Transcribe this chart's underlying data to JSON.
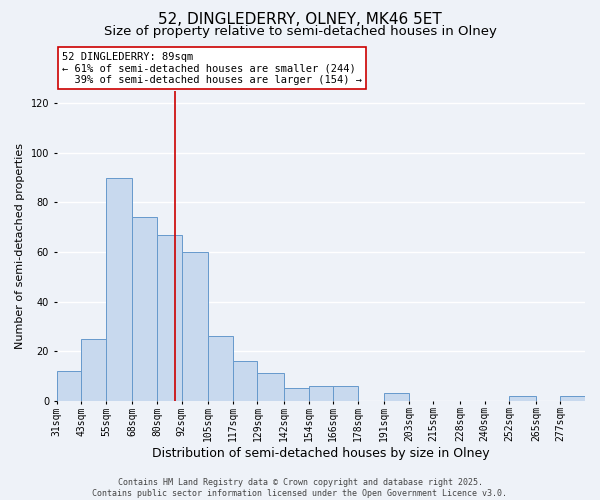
{
  "title": "52, DINGLEDERRY, OLNEY, MK46 5ET",
  "subtitle": "Size of property relative to semi-detached houses in Olney",
  "xlabel": "Distribution of semi-detached houses by size in Olney",
  "ylabel": "Number of semi-detached properties",
  "bin_labels": [
    "31sqm",
    "43sqm",
    "55sqm",
    "68sqm",
    "80sqm",
    "92sqm",
    "105sqm",
    "117sqm",
    "129sqm",
    "142sqm",
    "154sqm",
    "166sqm",
    "178sqm",
    "191sqm",
    "203sqm",
    "215sqm",
    "228sqm",
    "240sqm",
    "252sqm",
    "265sqm",
    "277sqm"
  ],
  "bin_edges": [
    31,
    43,
    55,
    68,
    80,
    92,
    105,
    117,
    129,
    142,
    154,
    166,
    178,
    191,
    203,
    215,
    228,
    240,
    252,
    265,
    277
  ],
  "bar_heights": [
    12,
    25,
    90,
    74,
    67,
    60,
    26,
    16,
    11,
    5,
    6,
    6,
    0,
    3,
    0,
    0,
    0,
    0,
    2,
    0,
    2
  ],
  "bar_color": "#c8d9ee",
  "bar_edge_color": "#6699cc",
  "ylim": [
    0,
    125
  ],
  "yticks": [
    0,
    20,
    40,
    60,
    80,
    100,
    120
  ],
  "property_value": 89,
  "vline_color": "#cc0000",
  "annotation_title": "52 DINGLEDERRY: 89sqm",
  "annotation_line1": "← 61% of semi-detached houses are smaller (244)",
  "annotation_line2": "  39% of semi-detached houses are larger (154) →",
  "annotation_box_color": "#ffffff",
  "annotation_box_edge_color": "#cc0000",
  "footer1": "Contains HM Land Registry data © Crown copyright and database right 2025.",
  "footer2": "Contains public sector information licensed under the Open Government Licence v3.0.",
  "background_color": "#eef2f8",
  "grid_color": "#ffffff",
  "title_fontsize": 11,
  "subtitle_fontsize": 9.5,
  "xlabel_fontsize": 9,
  "ylabel_fontsize": 8,
  "tick_fontsize": 7,
  "annotation_fontsize": 7.5,
  "footer_fontsize": 6
}
